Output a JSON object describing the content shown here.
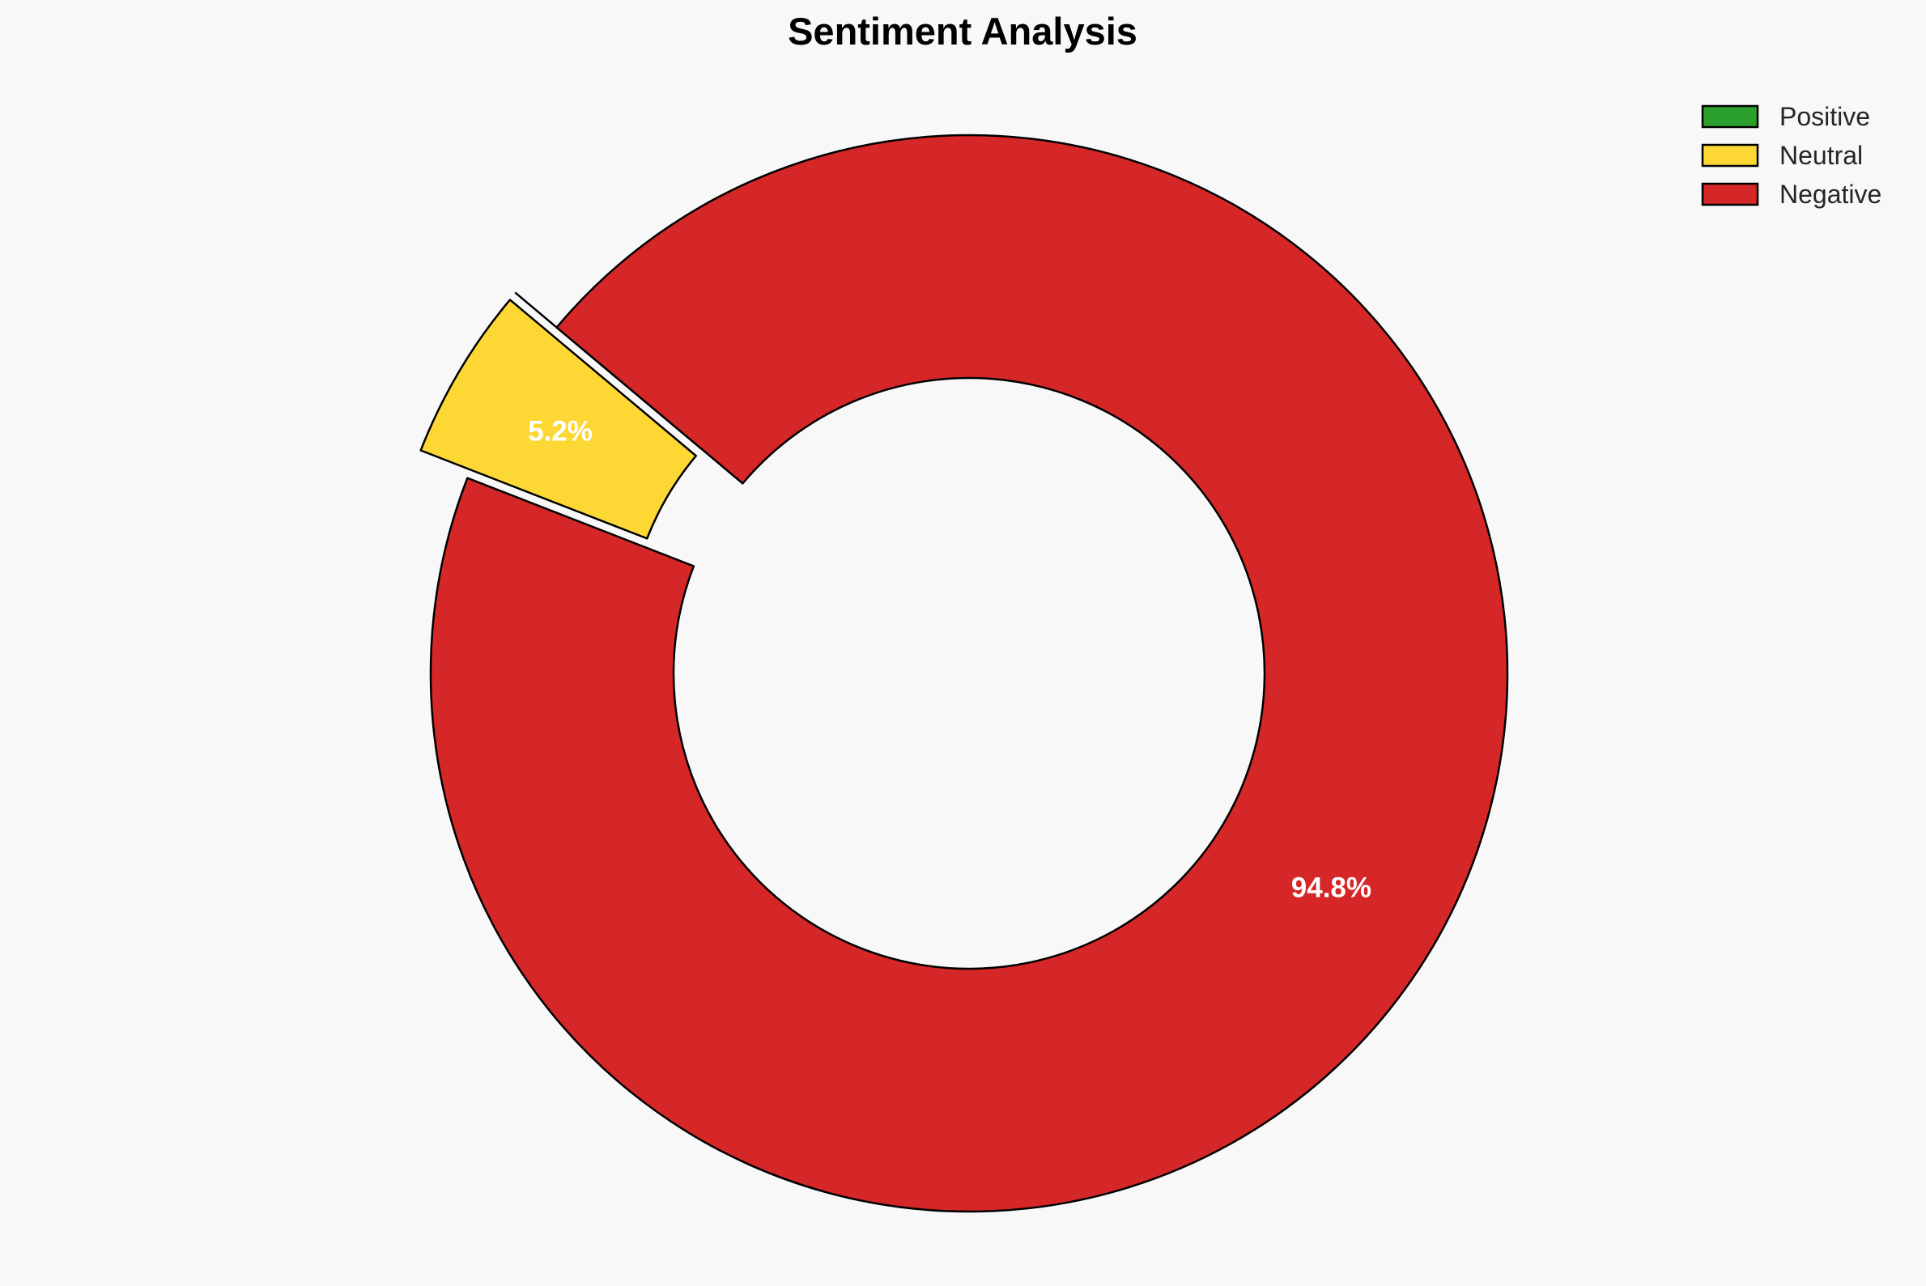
{
  "chart_data": {
    "type": "pie",
    "style": "donut",
    "title": "Sentiment Analysis",
    "categories": [
      "Positive",
      "Neutral",
      "Negative"
    ],
    "values": [
      0.0,
      5.2,
      94.8
    ],
    "value_labels": [
      "",
      "5.2%",
      "94.8%"
    ],
    "colors": [
      "#2ca02c",
      "#fdd835",
      "#d62728"
    ],
    "exploded": [
      "Positive",
      "Neutral"
    ],
    "start_angle_degrees": 140,
    "direction": "counterclockwise",
    "legend": {
      "placement": "top-right",
      "entries": [
        "Positive",
        "Neutral",
        "Negative"
      ]
    }
  }
}
